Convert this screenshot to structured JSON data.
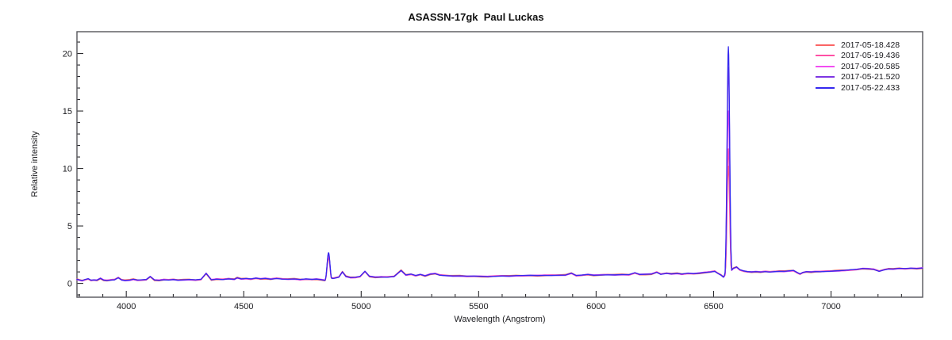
{
  "chart_data": {
    "type": "line",
    "title": "ASASSN-17gk  Paul Luckas",
    "xlabel": "Wavelength (Angstrom)",
    "ylabel": "Relative intensity",
    "xlim": [
      3790,
      7390
    ],
    "ylim": [
      -1.2,
      21.9
    ],
    "x_major_ticks": [
      4000,
      4500,
      5000,
      5500,
      6000,
      6500,
      7000
    ],
    "x_minor_step": 100,
    "y_major_ticks": [
      0,
      5,
      10,
      15,
      20
    ],
    "y_minor_step": 1,
    "grid": false,
    "legend_position": "top-right-inside",
    "frame_color": "#55555a",
    "tick_color": "#2a2a2e",
    "text_color": "#1b1b1f",
    "emission_lines": {
      "halpha": {
        "center": 6563,
        "sigma": 8
      },
      "hbeta": {
        "center": 4861,
        "sigma": 9
      }
    },
    "series": [
      {
        "name": "2017-05-18.428",
        "color": "#fa6464",
        "halpha_peak": 10.2,
        "hbeta_peak": 2.2,
        "jitter_amp": 0.06,
        "jitter_phase": 0.0
      },
      {
        "name": "2017-05-19.436",
        "color": "#ff50a5",
        "halpha_peak": 11.7,
        "hbeta_peak": 2.35,
        "jitter_amp": 0.045,
        "jitter_phase": 1.6
      },
      {
        "name": "2017-05-20.585",
        "color": "#f24df2",
        "halpha_peak": 15.0,
        "hbeta_peak": 2.5,
        "jitter_amp": 0.03,
        "jitter_phase": 3.1
      },
      {
        "name": "2017-05-21.520",
        "color": "#7e35e2",
        "halpha_peak": 18.8,
        "hbeta_peak": 2.6,
        "jitter_amp": 0.02,
        "jitter_phase": 4.5
      },
      {
        "name": "2017-05-22.433",
        "color": "#3528ef",
        "halpha_peak": 20.6,
        "hbeta_peak": 2.68,
        "jitter_amp": 0.015,
        "jitter_phase": 5.9
      }
    ],
    "base_points": [
      [
        3790,
        0.35
      ],
      [
        3800,
        0.29
      ],
      [
        3812,
        0.24
      ],
      [
        3825,
        0.33
      ],
      [
        3838,
        0.4
      ],
      [
        3850,
        0.27
      ],
      [
        3862,
        0.3
      ],
      [
        3875,
        0.28
      ],
      [
        3890,
        0.45
      ],
      [
        3903,
        0.3
      ],
      [
        3918,
        0.26
      ],
      [
        3935,
        0.3
      ],
      [
        3950,
        0.32
      ],
      [
        3966,
        0.5
      ],
      [
        3980,
        0.3
      ],
      [
        3995,
        0.25
      ],
      [
        4015,
        0.28
      ],
      [
        4030,
        0.35
      ],
      [
        4048,
        0.28
      ],
      [
        4065,
        0.3
      ],
      [
        4085,
        0.33
      ],
      [
        4102,
        0.6
      ],
      [
        4120,
        0.3
      ],
      [
        4140,
        0.28
      ],
      [
        4160,
        0.33
      ],
      [
        4180,
        0.3
      ],
      [
        4200,
        0.34
      ],
      [
        4220,
        0.28
      ],
      [
        4245,
        0.3
      ],
      [
        4270,
        0.32
      ],
      [
        4295,
        0.3
      ],
      [
        4318,
        0.35
      ],
      [
        4340,
        0.88
      ],
      [
        4362,
        0.32
      ],
      [
        4385,
        0.38
      ],
      [
        4410,
        0.34
      ],
      [
        4435,
        0.4
      ],
      [
        4460,
        0.35
      ],
      [
        4472,
        0.48
      ],
      [
        4490,
        0.38
      ],
      [
        4510,
        0.42
      ],
      [
        4530,
        0.38
      ],
      [
        4552,
        0.46
      ],
      [
        4572,
        0.4
      ],
      [
        4592,
        0.44
      ],
      [
        4615,
        0.38
      ],
      [
        4640,
        0.44
      ],
      [
        4665,
        0.38
      ],
      [
        4690,
        0.36
      ],
      [
        4715,
        0.38
      ],
      [
        4740,
        0.33
      ],
      [
        4765,
        0.38
      ],
      [
        4790,
        0.35
      ],
      [
        4810,
        0.38
      ],
      [
        4830,
        0.33
      ],
      [
        4845,
        0.28
      ],
      [
        4861,
        0.45
      ],
      [
        4882,
        0.44
      ],
      [
        4905,
        0.55
      ],
      [
        4920,
        1.0
      ],
      [
        4935,
        0.6
      ],
      [
        4955,
        0.5
      ],
      [
        4975,
        0.52
      ],
      [
        4995,
        0.6
      ],
      [
        5016,
        1.05
      ],
      [
        5035,
        0.62
      ],
      [
        5060,
        0.55
      ],
      [
        5085,
        0.57
      ],
      [
        5110,
        0.55
      ],
      [
        5140,
        0.6
      ],
      [
        5170,
        1.12
      ],
      [
        5190,
        0.72
      ],
      [
        5212,
        0.8
      ],
      [
        5232,
        0.68
      ],
      [
        5252,
        0.78
      ],
      [
        5272,
        0.66
      ],
      [
        5295,
        0.82
      ],
      [
        5315,
        0.86
      ],
      [
        5335,
        0.72
      ],
      [
        5360,
        0.68
      ],
      [
        5390,
        0.64
      ],
      [
        5420,
        0.65
      ],
      [
        5450,
        0.62
      ],
      [
        5480,
        0.63
      ],
      [
        5510,
        0.62
      ],
      [
        5540,
        0.6
      ],
      [
        5570,
        0.63
      ],
      [
        5600,
        0.65
      ],
      [
        5630,
        0.63
      ],
      [
        5660,
        0.66
      ],
      [
        5690,
        0.68
      ],
      [
        5720,
        0.7
      ],
      [
        5750,
        0.69
      ],
      [
        5780,
        0.71
      ],
      [
        5810,
        0.7
      ],
      [
        5840,
        0.71
      ],
      [
        5870,
        0.72
      ],
      [
        5895,
        0.88
      ],
      [
        5915,
        0.68
      ],
      [
        5940,
        0.72
      ],
      [
        5965,
        0.78
      ],
      [
        5990,
        0.72
      ],
      [
        6020,
        0.74
      ],
      [
        6050,
        0.75
      ],
      [
        6080,
        0.74
      ],
      [
        6110,
        0.76
      ],
      [
        6140,
        0.75
      ],
      [
        6165,
        0.92
      ],
      [
        6185,
        0.78
      ],
      [
        6210,
        0.8
      ],
      [
        6235,
        0.82
      ],
      [
        6258,
        0.98
      ],
      [
        6275,
        0.8
      ],
      [
        6300,
        0.88
      ],
      [
        6320,
        0.82
      ],
      [
        6345,
        0.86
      ],
      [
        6365,
        0.8
      ],
      [
        6390,
        0.88
      ],
      [
        6415,
        0.85
      ],
      [
        6440,
        0.9
      ],
      [
        6462,
        0.96
      ],
      [
        6485,
        1.0
      ],
      [
        6505,
        1.06
      ],
      [
        6518,
        0.88
      ],
      [
        6532,
        0.72
      ],
      [
        6542,
        0.55
      ],
      [
        6556,
        0.85
      ],
      [
        6570,
        1.0
      ],
      [
        6584,
        1.3
      ],
      [
        6598,
        1.42
      ],
      [
        6612,
        1.18
      ],
      [
        6628,
        1.08
      ],
      [
        6645,
        1.02
      ],
      [
        6662,
        1.0
      ],
      [
        6680,
        1.03
      ],
      [
        6700,
        1.0
      ],
      [
        6720,
        1.04
      ],
      [
        6740,
        1.0
      ],
      [
        6760,
        1.03
      ],
      [
        6780,
        1.05
      ],
      [
        6800,
        1.04
      ],
      [
        6820,
        1.08
      ],
      [
        6840,
        1.12
      ],
      [
        6858,
        0.92
      ],
      [
        6868,
        0.82
      ],
      [
        6880,
        0.95
      ],
      [
        6895,
        1.02
      ],
      [
        6915,
        1.0
      ],
      [
        6935,
        1.04
      ],
      [
        6955,
        1.03
      ],
      [
        6975,
        1.05
      ],
      [
        6995,
        1.06
      ],
      [
        7015,
        1.08
      ],
      [
        7035,
        1.1
      ],
      [
        7060,
        1.13
      ],
      [
        7085,
        1.18
      ],
      [
        7110,
        1.22
      ],
      [
        7135,
        1.3
      ],
      [
        7160,
        1.28
      ],
      [
        7180,
        1.24
      ],
      [
        7205,
        1.06
      ],
      [
        7225,
        1.18
      ],
      [
        7245,
        1.26
      ],
      [
        7265,
        1.24
      ],
      [
        7290,
        1.3
      ],
      [
        7315,
        1.28
      ],
      [
        7340,
        1.32
      ],
      [
        7365,
        1.3
      ],
      [
        7390,
        1.35
      ]
    ]
  }
}
